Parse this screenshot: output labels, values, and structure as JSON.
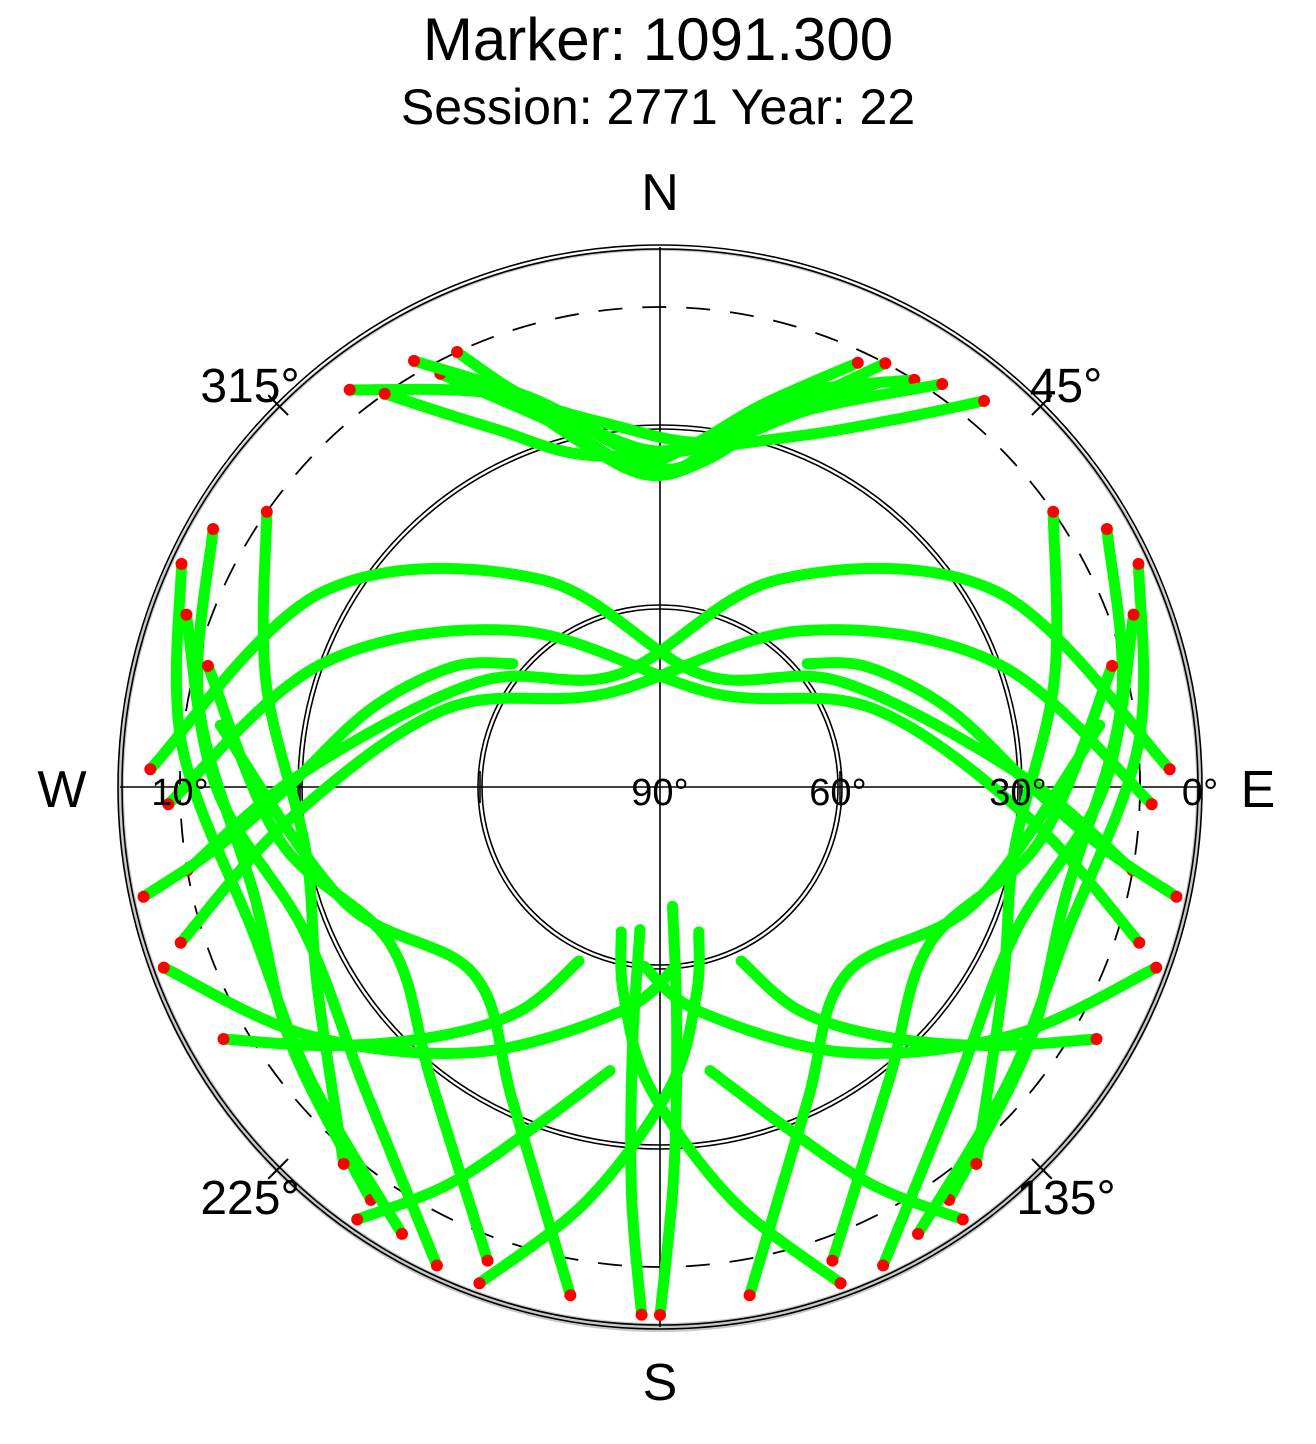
{
  "title": "Marker: 1091.300",
  "subtitle": "Session: 2771 Year: 22",
  "chart_data": {
    "type": "scatter",
    "projection": "polar-skyplot",
    "compass": {
      "north": "N",
      "east": "E",
      "south": "S",
      "west": "W"
    },
    "azimuth_labels": [
      "45°",
      "135°",
      "225°",
      "315°"
    ],
    "azimuth_values": [
      45,
      135,
      225,
      315
    ],
    "elevation_labels": [
      "0°",
      "30°",
      "60°",
      "90°",
      "10°"
    ],
    "elevation_values": [
      0,
      30,
      60,
      90,
      10
    ],
    "elevation_circles": [
      0,
      30,
      60
    ],
    "mask_circle_elevation": 10,
    "series": [
      {
        "color": "#00ff00"
      },
      {
        "color": "#ff0000"
      }
    ],
    "tracks": [
      {
        "az": [
          32,
          20,
          10,
          0,
          350,
          340,
          335
        ],
        "el": [
          10,
          20,
          30,
          34,
          30,
          20,
          10
        ]
      },
      {
        "az": [
          28,
          18,
          8,
          358,
          348,
          338
        ],
        "el": [
          14,
          25,
          35,
          38,
          32,
          18
        ]
      },
      {
        "az": [
          25,
          15,
          5,
          355,
          345,
          332
        ],
        "el": [
          12,
          24,
          33,
          36,
          28,
          12
        ]
      },
      {
        "az": [
          330,
          342,
          352,
          2,
          12,
          28
        ],
        "el": [
          8,
          22,
          32,
          37,
          30,
          10
        ]
      },
      {
        "az": [
          322,
          336,
          350,
          8,
          22,
          35
        ],
        "el": [
          6,
          18,
          28,
          32,
          22,
          8
        ]
      },
      {
        "az": [
          40,
          32,
          20,
          350,
          335,
          325
        ],
        "el": [
          6,
          18,
          28,
          34,
          24,
          10
        ]
      },
      {
        "az": [
          300,
          280,
          255,
          235,
          215
        ],
        "el": [
          4,
          12,
          20,
          15,
          6
        ]
      },
      {
        "az": [
          305,
          285,
          260,
          240,
          220
        ],
        "el": [
          10,
          22,
          30,
          24,
          8
        ]
      },
      {
        "az": [
          295,
          275,
          250,
          230,
          210
        ],
        "el": [
          2,
          10,
          18,
          14,
          4
        ]
      },
      {
        "az": [
          290,
          270,
          248,
          225,
          205
        ],
        "el": [
          6,
          16,
          26,
          20,
          2
        ]
      },
      {
        "az": [
          285,
          262,
          240,
          218,
          200
        ],
        "el": [
          12,
          26,
          38,
          28,
          6
        ]
      },
      {
        "az": [
          278,
          250,
          225,
          205,
          190
        ],
        "el": [
          16,
          34,
          46,
          32,
          4
        ]
      },
      {
        "az": [
          60,
          80,
          105,
          125,
          145
        ],
        "el": [
          4,
          12,
          20,
          15,
          6
        ]
      },
      {
        "az": [
          55,
          75,
          100,
          120,
          140
        ],
        "el": [
          10,
          22,
          30,
          24,
          8
        ]
      },
      {
        "az": [
          65,
          85,
          110,
          130,
          150
        ],
        "el": [
          2,
          10,
          18,
          14,
          4
        ]
      },
      {
        "az": [
          70,
          90,
          112,
          135,
          155
        ],
        "el": [
          6,
          16,
          26,
          20,
          2
        ]
      },
      {
        "az": [
          75,
          98,
          120,
          142,
          160
        ],
        "el": [
          12,
          26,
          38,
          28,
          6
        ]
      },
      {
        "az": [
          82,
          110,
          135,
          155,
          170
        ],
        "el": [
          16,
          34,
          46,
          32,
          4
        ]
      },
      {
        "az": [
          272,
          300,
          330,
          20,
          60,
          88,
          100
        ],
        "el": [
          5,
          25,
          50,
          70,
          55,
          30,
          10
        ]
      },
      {
        "az": [
          268,
          290,
          318,
          30,
          70,
          95,
          108
        ],
        "el": [
          8,
          30,
          55,
          72,
          52,
          28,
          6
        ]
      },
      {
        "az": [
          88,
          60,
          30,
          340,
          300,
          272,
          260
        ],
        "el": [
          5,
          25,
          50,
          70,
          55,
          30,
          10
        ]
      },
      {
        "az": [
          92,
          70,
          42,
          330,
          290,
          265,
          252
        ],
        "el": [
          8,
          30,
          55,
          72,
          52,
          28,
          6
        ]
      },
      {
        "az": [
          250,
          235,
          215,
          190,
          175
        ],
        "el": [
          2,
          18,
          36,
          52,
          60
        ]
      },
      {
        "az": [
          110,
          125,
          145,
          170,
          185
        ],
        "el": [
          2,
          18,
          36,
          52,
          60
        ]
      },
      {
        "az": [
          200,
          190,
          178,
          170,
          165
        ],
        "el": [
          2,
          20,
          40,
          55,
          65
        ]
      },
      {
        "az": [
          160,
          170,
          182,
          190,
          195
        ],
        "el": [
          2,
          20,
          40,
          55,
          65
        ]
      },
      {
        "az": [
          215,
          208,
          200,
          190
        ],
        "el": [
          2,
          15,
          30,
          42
        ]
      },
      {
        "az": [
          145,
          152,
          160,
          170
        ],
        "el": [
          2,
          15,
          30,
          42
        ]
      },
      {
        "az": [
          240,
          232,
          222,
          212,
          205
        ],
        "el": [
          6,
          20,
          34,
          46,
          58
        ]
      },
      {
        "az": [
          120,
          128,
          138,
          148,
          155
        ],
        "el": [
          6,
          20,
          34,
          46,
          58
        ]
      },
      {
        "az": [
          258,
          262,
          270,
          285,
          300,
          310
        ],
        "el": [
          2,
          15,
          28,
          40,
          50,
          58
        ]
      },
      {
        "az": [
          102,
          98,
          90,
          75,
          60,
          50
        ],
        "el": [
          2,
          15,
          28,
          40,
          50,
          58
        ]
      },
      {
        "az": [
          180,
          178,
          176,
          174
        ],
        "el": [
          2,
          25,
          50,
          70
        ]
      },
      {
        "az": [
          182,
          184,
          186,
          188
        ],
        "el": [
          2,
          22,
          46,
          66
        ]
      }
    ]
  }
}
